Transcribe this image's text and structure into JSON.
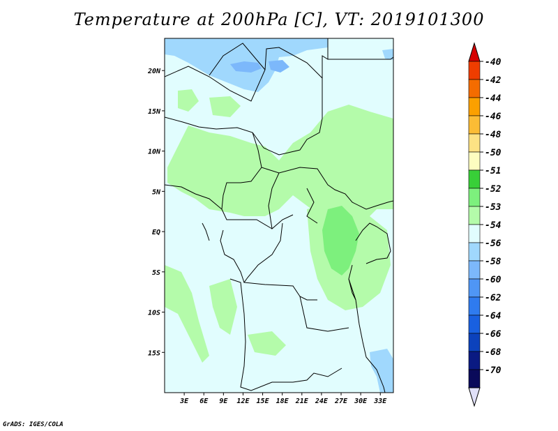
{
  "title": "Temperature at 200hPa [C], VT: 2019101300",
  "footer": "GrADS: IGES/COLA",
  "map": {
    "lon_range": [
      0,
      35
    ],
    "lat_range": [
      -20,
      24
    ],
    "x_ticks": [
      {
        "lon": 3,
        "label": "3E"
      },
      {
        "lon": 6,
        "label": "6E"
      },
      {
        "lon": 9,
        "label": "9E"
      },
      {
        "lon": 12,
        "label": "12E"
      },
      {
        "lon": 15,
        "label": "15E"
      },
      {
        "lon": 18,
        "label": "18E"
      },
      {
        "lon": 21,
        "label": "21E"
      },
      {
        "lon": 24,
        "label": "24E"
      },
      {
        "lon": 27,
        "label": "27E"
      },
      {
        "lon": 30,
        "label": "30E"
      },
      {
        "lon": 33,
        "label": "33E"
      }
    ],
    "y_ticks": [
      {
        "lat": 20,
        "label": "20N"
      },
      {
        "lat": 15,
        "label": "15N"
      },
      {
        "lat": 10,
        "label": "10N"
      },
      {
        "lat": 5,
        "label": "5N"
      },
      {
        "lat": 0,
        "label": "EQ"
      },
      {
        "lat": -5,
        "label": "5S"
      },
      {
        "lat": -10,
        "label": "10S"
      },
      {
        "lat": -15,
        "label": "15S"
      }
    ],
    "background_color": "#e1fdfe"
  },
  "colorbar": {
    "labels": [
      "-40",
      "-42",
      "-44",
      "-46",
      "-48",
      "-50",
      "-51",
      "-52",
      "-53",
      "-54",
      "-56",
      "-58",
      "-60",
      "-62",
      "-64",
      "-66",
      "-68",
      "-70"
    ],
    "colors": [
      "#d60000",
      "#ef3d00",
      "#f46c00",
      "#fba000",
      "#fbbc35",
      "#fde284",
      "#fdfdc0",
      "#38cf38",
      "#7df07d",
      "#b4fbaa",
      "#e1fdfe",
      "#a0d8fd",
      "#7cb8fb",
      "#4f96f5",
      "#2f7bef",
      "#1960e0",
      "#0c42bc",
      "#0a1a82",
      "#0a0a5a",
      "#e0e0f8"
    ]
  }
}
